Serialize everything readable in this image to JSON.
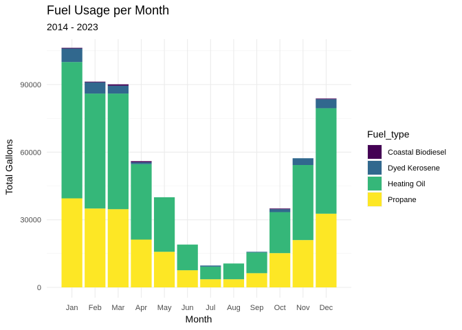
{
  "chart_data": {
    "type": "bar",
    "stacked": true,
    "title": "Fuel Usage per Month",
    "subtitle": "2014 - 2023",
    "xlabel": "Month",
    "ylabel": "Total Gallons",
    "categories": [
      "Jan",
      "Feb",
      "Mar",
      "Apr",
      "May",
      "Jun",
      "Jul",
      "Aug",
      "Sep",
      "Oct",
      "Nov",
      "Dec"
    ],
    "yticks": [
      0,
      30000,
      60000,
      90000
    ],
    "ylim": [
      0,
      110000
    ],
    "grid": true,
    "legend": {
      "title": "Fuel_type",
      "position": "right"
    },
    "series": [
      {
        "name": "Propane",
        "color": "#fde725",
        "values": [
          39500,
          35000,
          34700,
          21200,
          15800,
          7600,
          3600,
          3600,
          6300,
          15200,
          21000,
          32700
        ]
      },
      {
        "name": "Heating Oil",
        "color": "#35b779",
        "values": [
          60500,
          51000,
          51300,
          33500,
          24200,
          11400,
          5600,
          7000,
          9200,
          18200,
          33300,
          46800
        ]
      },
      {
        "name": "Dyed Kerosene",
        "color": "#31688e",
        "values": [
          6000,
          5000,
          3500,
          800,
          0,
          0,
          500,
          0,
          300,
          1300,
          3000,
          4000
        ]
      },
      {
        "name": "Coastal Biodiesel",
        "color": "#440154",
        "values": [
          300,
          300,
          600,
          500,
          0,
          0,
          0,
          0,
          0,
          300,
          0,
          300
        ]
      }
    ],
    "legend_order": [
      "Coastal Biodiesel",
      "Dyed Kerosene",
      "Heating Oil",
      "Propane"
    ]
  }
}
